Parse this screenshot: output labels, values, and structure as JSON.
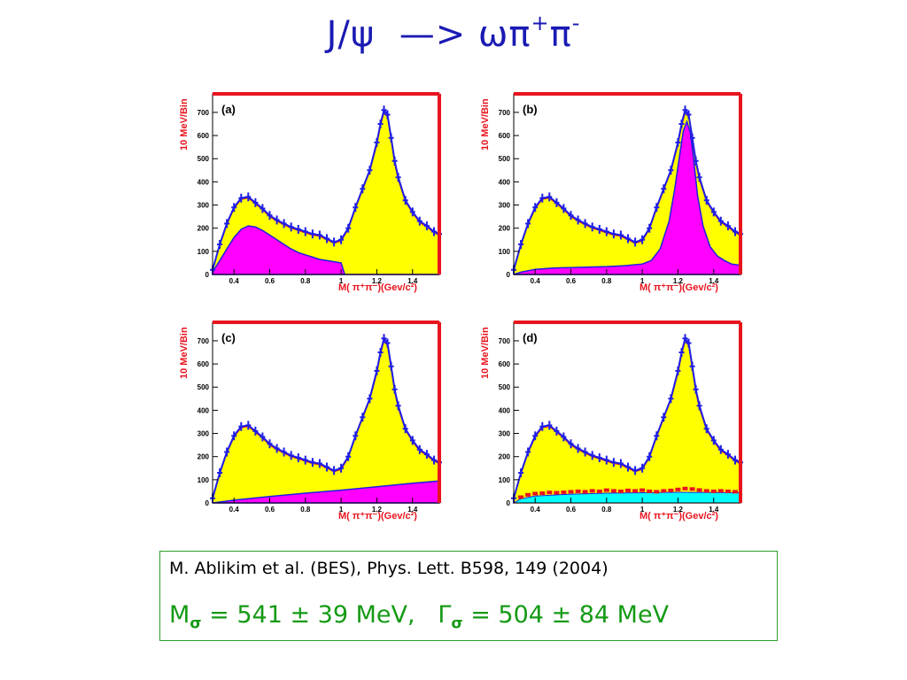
{
  "slide": {
    "title_main": "J/ψ  —> ωπ",
    "title_sup1": "+",
    "title_mid": "π",
    "title_sup2": "-"
  },
  "reference": {
    "citation": "M. Ablikim et al. (BES), Phys. Lett. B598, 149 (2004)",
    "mass_symbol": "M",
    "mass_sub": "σ",
    "mass_text": " = 541 ± 39 MeV,   ",
    "width_symbol": "Γ",
    "width_sub": "σ",
    "width_text": " = 504 ± 84 MeV"
  },
  "colors": {
    "frame": "#e8141e",
    "data": "#1e1ee6",
    "fit_fill": "#ffff00",
    "component_fill": "#ff00ff",
    "background_fill": "#00ffff"
  },
  "chart_data": [
    {
      "type": "area",
      "panel_label": "(a)",
      "ylabel": "10 MeV/Bin",
      "xlabel": "M( π⁺π⁻)(Gev/c²)",
      "xlim": [
        0.28,
        1.55
      ],
      "ylim": [
        0,
        780
      ],
      "yticks": [
        0,
        100,
        200,
        300,
        400,
        500,
        600,
        700
      ],
      "xticks": [
        0.4,
        0.6,
        0.8,
        1,
        1.2,
        1.4
      ],
      "xtick_labels": [
        "0.4",
        "0.6",
        "0.8",
        "1",
        "1.2",
        "1.4"
      ],
      "data_points": {
        "x": [
          0.28,
          0.32,
          0.36,
          0.4,
          0.44,
          0.48,
          0.52,
          0.56,
          0.6,
          0.64,
          0.68,
          0.72,
          0.76,
          0.8,
          0.84,
          0.88,
          0.92,
          0.96,
          1.0,
          1.04,
          1.08,
          1.12,
          1.16,
          1.2,
          1.22,
          1.24,
          1.26,
          1.28,
          1.3,
          1.32,
          1.36,
          1.4,
          1.44,
          1.48,
          1.52,
          1.55
        ],
        "y": [
          20,
          130,
          220,
          290,
          330,
          335,
          310,
          285,
          255,
          235,
          220,
          205,
          195,
          185,
          175,
          170,
          155,
          140,
          150,
          200,
          290,
          370,
          450,
          570,
          650,
          710,
          690,
          590,
          490,
          420,
          320,
          270,
          230,
          210,
          185,
          175
        ]
      },
      "fit_total": {
        "x": [
          0.28,
          0.32,
          0.36,
          0.4,
          0.44,
          0.48,
          0.52,
          0.56,
          0.6,
          0.64,
          0.68,
          0.72,
          0.76,
          0.8,
          0.84,
          0.88,
          0.92,
          0.96,
          1.0,
          1.04,
          1.08,
          1.12,
          1.16,
          1.2,
          1.22,
          1.24,
          1.26,
          1.28,
          1.3,
          1.32,
          1.36,
          1.4,
          1.44,
          1.48,
          1.52,
          1.55
        ],
        "y": [
          20,
          125,
          215,
          285,
          325,
          330,
          305,
          280,
          250,
          230,
          215,
          200,
          190,
          180,
          170,
          165,
          150,
          135,
          145,
          195,
          285,
          365,
          445,
          560,
          640,
          700,
          680,
          580,
          480,
          410,
          315,
          265,
          225,
          205,
          180,
          170
        ]
      },
      "component": {
        "name": "",
        "x": [
          0.28,
          0.32,
          0.36,
          0.4,
          0.44,
          0.48,
          0.52,
          0.56,
          0.6,
          0.64,
          0.68,
          0.72,
          0.76,
          0.8,
          0.84,
          0.88,
          0.92,
          0.96,
          1.0,
          1.02,
          1.55
        ],
        "y": [
          10,
          60,
          110,
          160,
          195,
          210,
          205,
          190,
          170,
          150,
          130,
          110,
          95,
          85,
          75,
          65,
          60,
          55,
          50,
          0,
          0
        ]
      }
    },
    {
      "type": "area",
      "panel_label": "(b)",
      "ylabel": "10 MeV/Bin",
      "xlabel": "M( π⁺π⁻)(Gev/c²)",
      "xlim": [
        0.28,
        1.55
      ],
      "ylim": [
        0,
        780
      ],
      "yticks": [
        0,
        100,
        200,
        300,
        400,
        500,
        600,
        700
      ],
      "xticks": [
        0.4,
        0.6,
        0.8,
        1,
        1.2,
        1.4
      ],
      "xtick_labels": [
        "0.4",
        "0.6",
        "0.8",
        "1",
        "1.2",
        "1.4"
      ],
      "data_points": {
        "x": [
          0.28,
          0.32,
          0.36,
          0.4,
          0.44,
          0.48,
          0.52,
          0.56,
          0.6,
          0.64,
          0.68,
          0.72,
          0.76,
          0.8,
          0.84,
          0.88,
          0.92,
          0.96,
          1.0,
          1.04,
          1.08,
          1.12,
          1.16,
          1.2,
          1.22,
          1.24,
          1.26,
          1.28,
          1.3,
          1.32,
          1.36,
          1.4,
          1.44,
          1.48,
          1.52,
          1.55
        ],
        "y": [
          20,
          130,
          220,
          290,
          330,
          335,
          310,
          285,
          255,
          235,
          220,
          205,
          195,
          185,
          175,
          170,
          155,
          140,
          150,
          200,
          290,
          370,
          450,
          570,
          650,
          710,
          690,
          590,
          490,
          420,
          320,
          270,
          230,
          210,
          185,
          175
        ]
      },
      "fit_total": {
        "x": [
          0.28,
          0.32,
          0.36,
          0.4,
          0.44,
          0.48,
          0.52,
          0.56,
          0.6,
          0.64,
          0.68,
          0.72,
          0.76,
          0.8,
          0.84,
          0.88,
          0.92,
          0.96,
          1.0,
          1.04,
          1.08,
          1.12,
          1.16,
          1.2,
          1.22,
          1.24,
          1.26,
          1.28,
          1.3,
          1.32,
          1.36,
          1.4,
          1.44,
          1.48,
          1.52,
          1.55
        ],
        "y": [
          20,
          125,
          215,
          285,
          325,
          330,
          305,
          280,
          250,
          230,
          215,
          200,
          190,
          180,
          170,
          165,
          150,
          135,
          145,
          195,
          285,
          365,
          445,
          560,
          640,
          700,
          680,
          580,
          480,
          410,
          315,
          265,
          225,
          205,
          180,
          170
        ]
      },
      "component": {
        "name": "",
        "x": [
          0.28,
          0.32,
          0.4,
          0.5,
          0.6,
          0.7,
          0.8,
          0.9,
          1.0,
          1.05,
          1.1,
          1.15,
          1.18,
          1.21,
          1.23,
          1.25,
          1.27,
          1.29,
          1.31,
          1.34,
          1.38,
          1.42,
          1.46,
          1.5,
          1.55
        ],
        "y": [
          0,
          10,
          22,
          28,
          30,
          32,
          34,
          38,
          45,
          60,
          110,
          230,
          360,
          520,
          620,
          660,
          610,
          480,
          340,
          210,
          120,
          80,
          60,
          45,
          40
        ]
      }
    },
    {
      "type": "area",
      "panel_label": "(c)",
      "ylabel": "10 MeV/Bin",
      "xlabel": "M( π⁺π⁻)(Gev/c²)",
      "xlim": [
        0.28,
        1.55
      ],
      "ylim": [
        0,
        780
      ],
      "yticks": [
        0,
        100,
        200,
        300,
        400,
        500,
        600,
        700
      ],
      "xticks": [
        0.4,
        0.6,
        0.8,
        1,
        1.2,
        1.4
      ],
      "xtick_labels": [
        "0.4",
        "0.6",
        "0.8",
        "1",
        "1.2",
        "1.4"
      ],
      "data_points": {
        "x": [
          0.28,
          0.32,
          0.36,
          0.4,
          0.44,
          0.48,
          0.52,
          0.56,
          0.6,
          0.64,
          0.68,
          0.72,
          0.76,
          0.8,
          0.84,
          0.88,
          0.92,
          0.96,
          1.0,
          1.04,
          1.08,
          1.12,
          1.16,
          1.2,
          1.22,
          1.24,
          1.26,
          1.28,
          1.3,
          1.32,
          1.36,
          1.4,
          1.44,
          1.48,
          1.52,
          1.55
        ],
        "y": [
          20,
          130,
          220,
          290,
          330,
          335,
          310,
          285,
          255,
          235,
          220,
          205,
          195,
          185,
          175,
          170,
          155,
          140,
          150,
          200,
          290,
          370,
          450,
          570,
          650,
          710,
          690,
          590,
          490,
          420,
          320,
          270,
          230,
          210,
          185,
          175
        ]
      },
      "fit_total": {
        "x": [
          0.28,
          0.32,
          0.36,
          0.4,
          0.44,
          0.48,
          0.52,
          0.56,
          0.6,
          0.64,
          0.68,
          0.72,
          0.76,
          0.8,
          0.84,
          0.88,
          0.92,
          0.96,
          1.0,
          1.04,
          1.08,
          1.12,
          1.16,
          1.2,
          1.22,
          1.24,
          1.26,
          1.28,
          1.3,
          1.32,
          1.36,
          1.4,
          1.44,
          1.48,
          1.52,
          1.55
        ],
        "y": [
          20,
          125,
          215,
          285,
          325,
          330,
          305,
          280,
          250,
          230,
          215,
          200,
          190,
          180,
          170,
          165,
          150,
          135,
          145,
          195,
          285,
          365,
          445,
          560,
          640,
          700,
          680,
          580,
          480,
          410,
          315,
          265,
          225,
          205,
          180,
          170
        ]
      },
      "component": {
        "name": "",
        "x": [
          0.28,
          0.4,
          0.6,
          0.8,
          1.0,
          1.2,
          1.4,
          1.55
        ],
        "y": [
          0,
          12,
          28,
          42,
          55,
          70,
          85,
          95
        ]
      }
    },
    {
      "type": "area",
      "panel_label": "(d)",
      "ylabel": "10 MeV/Bin",
      "xlabel": "M( π⁺π⁻)(Gev/c²)",
      "xlim": [
        0.28,
        1.55
      ],
      "ylim": [
        0,
        780
      ],
      "yticks": [
        0,
        100,
        200,
        300,
        400,
        500,
        600,
        700
      ],
      "xticks": [
        0.4,
        0.6,
        0.8,
        1,
        1.2,
        1.4
      ],
      "xtick_labels": [
        "0.4",
        "0.6",
        "0.8",
        "1",
        "1.2",
        "1.4"
      ],
      "data_points": {
        "x": [
          0.28,
          0.32,
          0.36,
          0.4,
          0.44,
          0.48,
          0.52,
          0.56,
          0.6,
          0.64,
          0.68,
          0.72,
          0.76,
          0.8,
          0.84,
          0.88,
          0.92,
          0.96,
          1.0,
          1.04,
          1.08,
          1.12,
          1.16,
          1.2,
          1.22,
          1.24,
          1.26,
          1.28,
          1.3,
          1.32,
          1.36,
          1.4,
          1.44,
          1.48,
          1.52,
          1.55
        ],
        "y": [
          20,
          130,
          220,
          290,
          330,
          335,
          310,
          285,
          255,
          235,
          220,
          205,
          195,
          185,
          175,
          170,
          155,
          140,
          150,
          200,
          290,
          370,
          450,
          570,
          650,
          710,
          690,
          590,
          490,
          420,
          320,
          270,
          230,
          210,
          185,
          175
        ]
      },
      "fit_total": {
        "x": [
          0.28,
          0.32,
          0.36,
          0.4,
          0.44,
          0.48,
          0.52,
          0.56,
          0.6,
          0.64,
          0.68,
          0.72,
          0.76,
          0.8,
          0.84,
          0.88,
          0.92,
          0.96,
          1.0,
          1.04,
          1.08,
          1.12,
          1.16,
          1.2,
          1.22,
          1.24,
          1.26,
          1.28,
          1.3,
          1.32,
          1.36,
          1.4,
          1.44,
          1.48,
          1.52,
          1.55
        ],
        "y": [
          20,
          125,
          215,
          285,
          325,
          330,
          305,
          280,
          250,
          230,
          215,
          200,
          190,
          180,
          170,
          165,
          150,
          135,
          145,
          195,
          285,
          365,
          445,
          560,
          640,
          700,
          680,
          580,
          480,
          410,
          315,
          265,
          225,
          205,
          180,
          170
        ]
      },
      "background": {
        "name": "",
        "x": [
          0.28,
          0.32,
          0.4,
          0.6,
          0.8,
          1.0,
          1.2,
          1.4,
          1.55
        ],
        "y": [
          0,
          18,
          30,
          38,
          42,
          44,
          46,
          45,
          44
        ]
      },
      "background_points": {
        "x": [
          0.32,
          0.36,
          0.4,
          0.44,
          0.48,
          0.52,
          0.56,
          0.6,
          0.64,
          0.68,
          0.72,
          0.76,
          0.8,
          0.84,
          0.88,
          0.92,
          0.96,
          1.0,
          1.04,
          1.08,
          1.12,
          1.16,
          1.2,
          1.24,
          1.28,
          1.32,
          1.36,
          1.4,
          1.44,
          1.48,
          1.52
        ],
        "y": [
          25,
          35,
          40,
          42,
          45,
          44,
          46,
          48,
          50,
          48,
          52,
          50,
          55,
          52,
          50,
          54,
          52,
          55,
          50,
          48,
          52,
          54,
          58,
          62,
          60,
          56,
          52,
          50,
          52,
          50,
          48
        ]
      }
    }
  ]
}
